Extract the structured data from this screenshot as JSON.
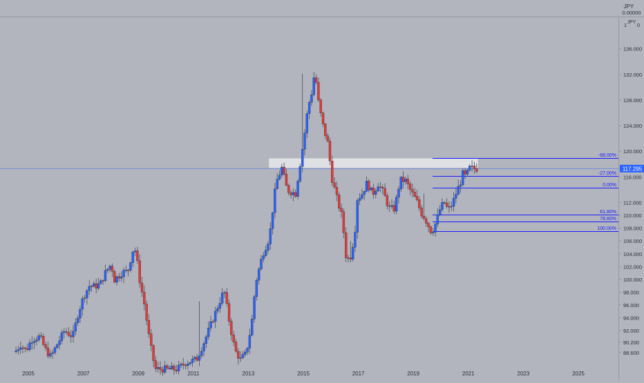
{
  "header": {
    "currency_label": "JPY",
    "top_value": "0.00000",
    "top_value_short": "0",
    "top_tick": "1"
  },
  "colors": {
    "background": "#b2b5be",
    "up": "#2962ff",
    "down": "#e53935",
    "wick": "#4a4e5a",
    "fib_line": "#1a1aff",
    "fib_text": "#1a1aff",
    "price_label_bg": "#2962ff",
    "price_label_text": "#ffffff",
    "axis_text": "#2a2e39",
    "zone_fill": "#e6e7eb",
    "price_line": "#2962ff"
  },
  "chart_data": {
    "type": "candlestick",
    "ylim": [
      87.5,
      139.3
    ],
    "xlim": [
      2004.6,
      2026.2
    ],
    "grid": false,
    "price_axis": {
      "ticks": [
        {
          "value": 136.0,
          "label": "136.000"
        },
        {
          "value": 132.0,
          "label": "132.000"
        },
        {
          "value": 128.0,
          "label": "128.000"
        },
        {
          "value": 124.0,
          "label": "124.000"
        },
        {
          "value": 120.0,
          "label": "120.000"
        },
        {
          "value": 116.0,
          "label": "116.000"
        },
        {
          "value": 112.0,
          "label": "112.000"
        },
        {
          "value": 110.0,
          "label": "110.000"
        },
        {
          "value": 108.0,
          "label": "108.000"
        },
        {
          "value": 106.0,
          "label": "106.000"
        },
        {
          "value": 104.0,
          "label": "104.000"
        },
        {
          "value": 102.0,
          "label": "102.000"
        },
        {
          "value": 100.0,
          "label": "100.000"
        },
        {
          "value": 98.0,
          "label": "98.000"
        },
        {
          "value": 96.0,
          "label": "96.000"
        },
        {
          "value": 94.0,
          "label": "94.000"
        },
        {
          "value": 92.0,
          "label": "92.000"
        },
        {
          "value": 90.2,
          "label": "90.200"
        },
        {
          "value": 88.6,
          "label": "88.600"
        }
      ]
    },
    "time_axis": {
      "ticks": [
        {
          "value": 2005,
          "label": "2005"
        },
        {
          "value": 2007,
          "label": "2007"
        },
        {
          "value": 2009,
          "label": "2009"
        },
        {
          "value": 2011,
          "label": "2011"
        },
        {
          "value": 2013,
          "label": "2013"
        },
        {
          "value": 2015,
          "label": "2015"
        },
        {
          "value": 2017,
          "label": "2017"
        },
        {
          "value": 2019,
          "label": "2019"
        },
        {
          "value": 2021,
          "label": "2021"
        },
        {
          "value": 2023,
          "label": "2023"
        },
        {
          "value": 2025,
          "label": "2025"
        }
      ]
    },
    "current_price": {
      "value": 117.295,
      "label": "117.295"
    },
    "fib_levels": [
      {
        "label": "-68.00%",
        "price": 118.9
      },
      {
        "label": "-27.00%",
        "price": 116.1
      },
      {
        "label": "0.00%",
        "price": 114.3
      },
      {
        "label": "61.80%",
        "price": 110.1
      },
      {
        "label": "78.60%",
        "price": 109.0
      },
      {
        "label": "100.00%",
        "price": 107.5
      }
    ],
    "fib_x_start": 2019.7,
    "resistance_zone": {
      "x_start": 2013.75,
      "x_end": 2021.35,
      "price_low": 117.4,
      "price_high": 118.9
    },
    "ohlc_anchors": [
      [
        2004.6,
        88.7
      ],
      [
        2004.8,
        89.8
      ],
      [
        2005.0,
        88.9
      ],
      [
        2005.2,
        90.6
      ],
      [
        2005.5,
        91.1
      ],
      [
        2005.7,
        89.1
      ],
      [
        2005.9,
        87.9
      ],
      [
        2006.1,
        89.6
      ],
      [
        2006.4,
        92.0
      ],
      [
        2006.7,
        91.1
      ],
      [
        2006.9,
        94.8
      ],
      [
        2007.1,
        97.4
      ],
      [
        2007.3,
        99.0
      ],
      [
        2007.5,
        98.9
      ],
      [
        2007.7,
        99.3
      ],
      [
        2007.9,
        101.2
      ],
      [
        2008.1,
        102.4
      ],
      [
        2008.2,
        99.9
      ],
      [
        2008.5,
        101.1
      ],
      [
        2008.7,
        101.3
      ],
      [
        2008.9,
        104.8
      ],
      [
        2009.0,
        104.4
      ],
      [
        2009.1,
        100.6
      ],
      [
        2009.3,
        96.2
      ],
      [
        2009.5,
        90.2
      ],
      [
        2009.7,
        86.0
      ],
      [
        2010.5,
        86.0
      ],
      [
        2010.8,
        87.0
      ],
      [
        2011.2,
        87.5
      ],
      [
        2011.5,
        90.5
      ],
      [
        2011.9,
        95.0
      ],
      [
        2012.2,
        98.3
      ],
      [
        2012.4,
        93.2
      ],
      [
        2012.6,
        88.9
      ],
      [
        2012.8,
        87.5
      ],
      [
        2013.0,
        88.4
      ],
      [
        2013.2,
        93.0
      ],
      [
        2013.35,
        99.5
      ],
      [
        2013.6,
        103.9
      ],
      [
        2013.85,
        106.5
      ],
      [
        2014.0,
        112.0
      ],
      [
        2014.1,
        115.2
      ],
      [
        2014.3,
        117.4
      ],
      [
        2014.5,
        113.9
      ],
      [
        2014.8,
        113.4
      ],
      [
        2014.95,
        117.6
      ],
      [
        2015.1,
        121.8
      ],
      [
        2015.25,
        126.8
      ],
      [
        2015.4,
        129.4
      ],
      [
        2015.5,
        132.6
      ],
      [
        2015.65,
        127.1
      ],
      [
        2015.8,
        124.0
      ],
      [
        2016.0,
        120.8
      ],
      [
        2016.1,
        116.2
      ],
      [
        2016.3,
        112.7
      ],
      [
        2016.5,
        109.6
      ],
      [
        2016.65,
        103.0
      ],
      [
        2016.8,
        103.6
      ],
      [
        2016.95,
        107.0
      ],
      [
        2017.05,
        112.6
      ],
      [
        2017.2,
        113.2
      ],
      [
        2017.4,
        115.1
      ],
      [
        2017.6,
        113.3
      ],
      [
        2017.8,
        114.9
      ],
      [
        2018.0,
        113.5
      ],
      [
        2018.2,
        111.1
      ],
      [
        2018.4,
        111.0
      ],
      [
        2018.6,
        115.5
      ],
      [
        2018.8,
        115.4
      ],
      [
        2019.0,
        113.7
      ],
      [
        2019.2,
        112.3
      ],
      [
        2019.4,
        110.1
      ],
      [
        2019.5,
        109.6
      ],
      [
        2019.75,
        107.3
      ],
      [
        2019.9,
        108.8
      ],
      [
        2020.05,
        110.9
      ],
      [
        2020.2,
        112.1
      ],
      [
        2020.35,
        110.8
      ],
      [
        2020.5,
        111.8
      ],
      [
        2020.65,
        113.6
      ],
      [
        2020.8,
        115.2
      ],
      [
        2020.9,
        116.7
      ],
      [
        2021.0,
        115.8
      ],
      [
        2021.1,
        117.4
      ],
      [
        2021.25,
        117.3
      ]
    ]
  }
}
